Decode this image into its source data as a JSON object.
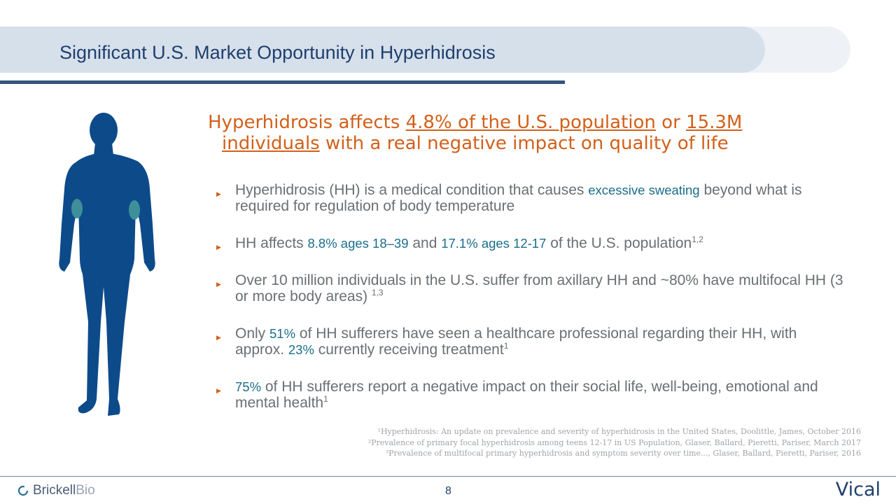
{
  "slide": {
    "title": "Significant U.S. Market Opportunity in Hyperhidrosis",
    "page_number": "8"
  },
  "headline": {
    "p1": "Hyperhidrosis affects ",
    "u1": "4.8% of the U.S. population",
    "p2": " or ",
    "u2": "15.3M",
    "u3": "individuals",
    "p3": " with a real negative impact on quality of life"
  },
  "bullets": [
    {
      "a": "Hyperhidrosis (HH) is a medical condition that causes ",
      "h1": "excessive sweating",
      "b": " beyond what is required for regulation of body temperature"
    },
    {
      "a": "HH affects ",
      "h1": "8.8% ages 18–39",
      "b": " and ",
      "h2": "17.1% ages 12-17",
      "c": " of the U.S. population",
      "sup": "1,2"
    },
    {
      "a": "Over 10 million individuals in the U.S. suffer from axillary HH and ~80% have multifocal HH (3 or more body areas) ",
      "sup": "1,3"
    },
    {
      "a": "Only ",
      "h1": "51%",
      "b": " of HH sufferers have seen a healthcare professional regarding their HH, with approx. ",
      "h2": "23%",
      "c": " currently receiving treatment",
      "sup": "1"
    },
    {
      "h1": "75%",
      "b": " of HH sufferers report a negative impact on their social life, well-being, emotional and mental health",
      "sup": "1"
    }
  ],
  "references": [
    "¹Hyperhidrosis: An update on prevalence and severity of hyperhidrosis in the United States, Doolittle, James, October 2016",
    "²Prevalence of primary focal hyperhidrosis among teens 12-17 in US Population, Glaser, Ballard, Pieretti, Pariser, March 2017",
    "³Prevalence of multifocal primary hyperhidrosis and symptom severity over time..., Glaser, Ballard, Pieretti, Pariser, 2016"
  ],
  "logos": {
    "left_brand_a": "Brickell",
    "left_brand_b": "Bio",
    "right": "Vical"
  },
  "icons": {
    "figure": "person-silhouette-icon",
    "bullet": "triangle-bullet-icon",
    "brand": "brickell-ring-icon"
  },
  "colors": {
    "title": "#1f3f6e",
    "headline": "#d2601a",
    "highlight": "#1a6e8a",
    "figure": "#0d4a8a",
    "sweat": "#3f8f9a"
  }
}
